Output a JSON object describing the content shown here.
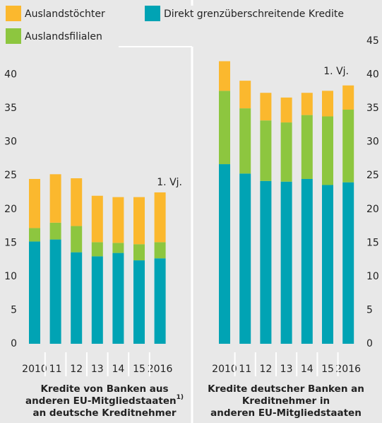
{
  "chart_data": [
    {
      "type": "stacked_bar",
      "categories": [
        "2010",
        "11",
        "12",
        "13",
        "14",
        "15",
        "2016"
      ],
      "series": [
        {
          "name": "Direkt grenzüberschreitende Kredite",
          "color": "#00a3b4",
          "values": [
            15.2,
            15.5,
            13.6,
            13.0,
            13.5,
            12.4,
            12.7
          ]
        },
        {
          "name": "Auslandsfilialen",
          "color": "#8dc63f",
          "values": [
            2.0,
            2.5,
            3.9,
            2.1,
            1.5,
            2.4,
            2.4
          ]
        },
        {
          "name": "Auslandstöchter",
          "color": "#fbb82e",
          "values": [
            7.3,
            7.2,
            7.1,
            6.9,
            6.8,
            7.0,
            7.4
          ]
        }
      ],
      "ylim": [
        0,
        45
      ],
      "yticks": [
        0,
        5,
        10,
        15,
        20,
        25,
        30,
        35,
        40
      ],
      "annotation": "1. Vj.",
      "title_lines": [
        "Kredite von Banken aus",
        "anderen EU-Mitgliedstaaten",
        "an deutsche Kreditnehmer"
      ],
      "footnote": "1)"
    },
    {
      "type": "stacked_bar",
      "categories": [
        "2010",
        "11",
        "12",
        "13",
        "14",
        "15",
        "2016"
      ],
      "series": [
        {
          "color": "#00a3b4",
          "values": [
            26.7,
            25.3,
            24.2,
            24.1,
            24.5,
            23.6,
            24.0
          ]
        },
        {
          "color": "#8dc63f",
          "values": [
            10.9,
            9.7,
            9.0,
            8.8,
            9.5,
            10.2,
            10.8
          ]
        },
        {
          "color": "#fbb82e",
          "values": [
            4.4,
            4.1,
            4.1,
            3.7,
            3.3,
            3.8,
            3.6
          ]
        }
      ],
      "ylim": [
        0,
        45
      ],
      "yticks": [
        0,
        5,
        10,
        15,
        20,
        25,
        30,
        35,
        40,
        45
      ],
      "annotation": "1. Vj.",
      "title_lines": [
        "Kredite deutscher Banken an",
        "Kreditnehmer in",
        "anderen EU-Mitgliedstaaten"
      ]
    }
  ]
}
